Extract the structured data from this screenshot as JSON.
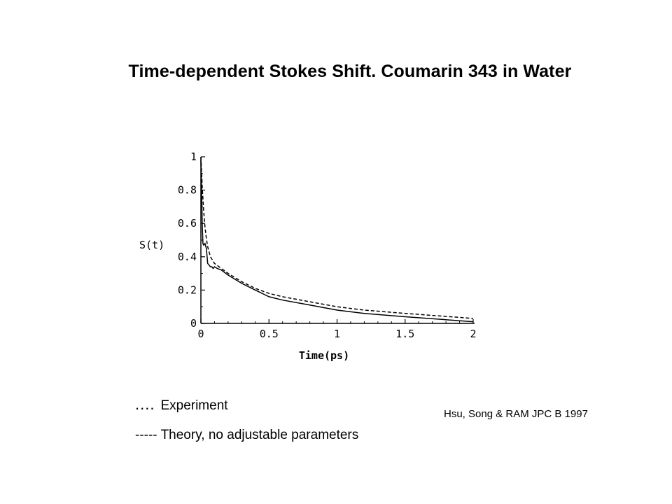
{
  "page": {
    "title": "Time-dependent Stokes Shift. Coumarin 343 in Water",
    "citation": "Hsu, Song & RAM JPC B 1997"
  },
  "legend": {
    "experiment_marker": "....",
    "experiment_label": "Experiment",
    "theory_label": "----- Theory, no adjustable parameters"
  },
  "chart_data": {
    "type": "line",
    "title": "Time-dependent Stokes Shift. Coumarin 343 in Water",
    "xlabel": "Time(ps)",
    "ylabel": "S(t)",
    "xlim": [
      0,
      2
    ],
    "ylim": [
      0,
      1
    ],
    "xticks": [
      0,
      0.5,
      1,
      1.5,
      2
    ],
    "xtick_labels": [
      "0",
      "0.5",
      "1",
      "1.5",
      "2"
    ],
    "yticks": [
      0,
      0.2,
      0.4,
      0.6,
      0.8,
      1
    ],
    "ytick_labels": [
      "0",
      "0.2",
      "0.4",
      "0.6",
      "0.8",
      "1"
    ],
    "grid": false,
    "series": [
      {
        "name": "Experiment",
        "style": "solid",
        "color": "#000000",
        "x": [
          0,
          0.005,
          0.01,
          0.015,
          0.02,
          0.03,
          0.04,
          0.05,
          0.06,
          0.07,
          0.08,
          0.09,
          0.1,
          0.12,
          0.15,
          0.2,
          0.3,
          0.4,
          0.5,
          0.6,
          0.8,
          1.0,
          1.2,
          1.5,
          2.0
        ],
        "y": [
          0.98,
          0.8,
          0.6,
          0.48,
          0.47,
          0.48,
          0.45,
          0.36,
          0.35,
          0.34,
          0.34,
          0.33,
          0.34,
          0.33,
          0.32,
          0.29,
          0.24,
          0.2,
          0.16,
          0.14,
          0.11,
          0.08,
          0.06,
          0.04,
          0.01
        ]
      },
      {
        "name": "Theory, no adjustable parameters",
        "style": "dashed",
        "color": "#000000",
        "x": [
          0,
          0.01,
          0.02,
          0.03,
          0.04,
          0.05,
          0.07,
          0.1,
          0.15,
          0.2,
          0.3,
          0.4,
          0.5,
          0.6,
          0.8,
          1.0,
          1.2,
          1.5,
          2.0
        ],
        "y": [
          1.0,
          0.82,
          0.68,
          0.58,
          0.51,
          0.46,
          0.4,
          0.36,
          0.33,
          0.3,
          0.25,
          0.21,
          0.18,
          0.16,
          0.13,
          0.1,
          0.08,
          0.06,
          0.03
        ]
      }
    ]
  }
}
